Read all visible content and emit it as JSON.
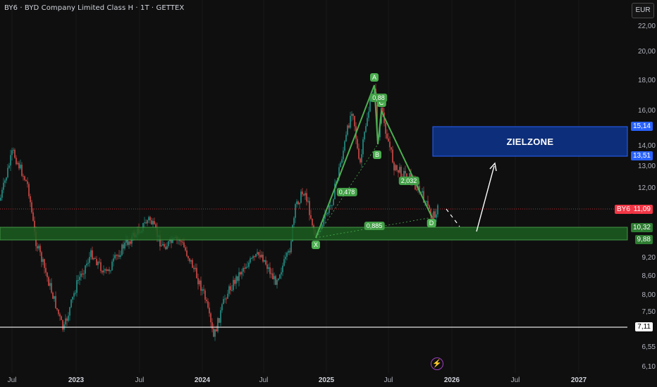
{
  "header": {
    "title": "BY6 · BYD Company Limited Class H · 1T · GETTEX",
    "currency": "EUR"
  },
  "y_axis": {
    "ticks": [
      "22,00",
      "20,00",
      "18,00",
      "16,00",
      "14,00",
      "13,00",
      "12,00",
      "9,20",
      "8,60",
      "8,00",
      "7,50",
      "6,55",
      "6,10"
    ],
    "badges": {
      "upper": {
        "text": "15,14",
        "color": "#2962ff"
      },
      "lower": {
        "text": "13,51",
        "color": "#2962ff"
      },
      "last": {
        "text": "11,09",
        "color": "#f23645"
      },
      "supp_top": {
        "text": "10,32",
        "color": "#2e7d32"
      },
      "supp_bot": {
        "text": "9,88",
        "color": "#2e7d32"
      },
      "floor": {
        "text": "7,11",
        "color": "#ffffff"
      }
    },
    "symbol": "BY6"
  },
  "x_axis": {
    "ticks": [
      {
        "label": "Jul",
        "bold": false
      },
      {
        "label": "2023",
        "bold": true
      },
      {
        "label": "Jul",
        "bold": false
      },
      {
        "label": "2024",
        "bold": true
      },
      {
        "label": "Jul",
        "bold": false
      },
      {
        "label": "2025",
        "bold": true
      },
      {
        "label": "Jul",
        "bold": false
      },
      {
        "label": "2026",
        "bold": true
      },
      {
        "label": "Jul",
        "bold": false
      },
      {
        "label": "2027",
        "bold": true
      }
    ]
  },
  "zone": {
    "label": "ZIELZONE",
    "fill": "#0d2e7a",
    "border": "#2962ff"
  },
  "pattern": {
    "points": [
      "X",
      "A",
      "B",
      "C",
      "D"
    ],
    "ratios": [
      "0,478",
      "0,88",
      "2,032",
      "0,885"
    ],
    "color": "#4caf50"
  },
  "colors": {
    "up": "#26a69a",
    "down": "#ef5350",
    "support": "#2e7d32"
  },
  "chart_data": {
    "type": "candlestick",
    "title": "BY6 · BYD Company Limited Class H · 1T · GETTEX",
    "currency": "EUR",
    "last_price": 11.09,
    "support_zone": [
      9.88,
      10.32
    ],
    "target_zone": [
      13.51,
      15.14
    ],
    "floor_line": 7.11,
    "harmonic_points": {
      "X": 10.0,
      "A": 17.8,
      "B": 14.2,
      "C": 16.8,
      "D": 10.6
    }
  }
}
